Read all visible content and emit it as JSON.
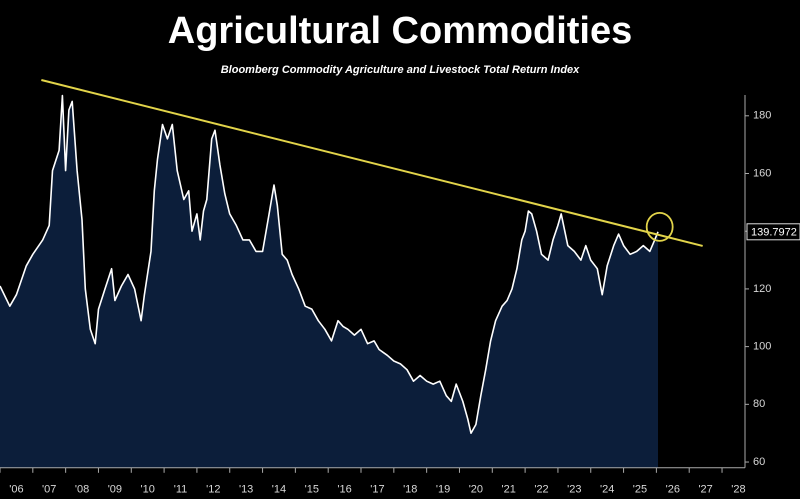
{
  "chart_data": {
    "type": "area",
    "title": "Agricultural Commodities",
    "subtitle": "Bloomberg Commodity Agriculture and Livestock Total Return Index",
    "x": [
      2006.0,
      2006.3,
      2006.5,
      2006.8,
      2007.0,
      2007.3,
      2007.5,
      2007.6,
      2007.8,
      2007.9,
      2008.0,
      2008.1,
      2008.2,
      2008.35,
      2008.5,
      2008.6,
      2008.75,
      2008.9,
      2009.0,
      2009.2,
      2009.4,
      2009.5,
      2009.7,
      2009.9,
      2010.1,
      2010.3,
      2010.4,
      2010.6,
      2010.7,
      2010.8,
      2010.95,
      2011.1,
      2011.25,
      2011.4,
      2011.6,
      2011.75,
      2011.85,
      2012.0,
      2012.1,
      2012.2,
      2012.3,
      2012.45,
      2012.55,
      2012.7,
      2012.85,
      2013.0,
      2013.2,
      2013.4,
      2013.6,
      2013.8,
      2014.0,
      2014.2,
      2014.35,
      2014.45,
      2014.6,
      2014.75,
      2014.9,
      2015.1,
      2015.3,
      2015.5,
      2015.7,
      2015.9,
      2016.1,
      2016.3,
      2016.45,
      2016.6,
      2016.8,
      2017.0,
      2017.2,
      2017.4,
      2017.55,
      2017.8,
      2018.0,
      2018.2,
      2018.4,
      2018.6,
      2018.8,
      2019.0,
      2019.2,
      2019.4,
      2019.6,
      2019.75,
      2019.9,
      2020.1,
      2020.25,
      2020.35,
      2020.5,
      2020.65,
      2020.8,
      2020.95,
      2021.1,
      2021.3,
      2021.45,
      2021.6,
      2021.75,
      2021.9,
      2022.0,
      2022.1,
      2022.2,
      2022.35,
      2022.5,
      2022.7,
      2022.85,
      2023.0,
      2023.1,
      2023.3,
      2023.5,
      2023.7,
      2023.85,
      2024.0,
      2024.2,
      2024.35,
      2024.5,
      2024.7,
      2024.85,
      2025.0,
      2025.2,
      2025.4,
      2025.6,
      2025.8,
      2025.95,
      2026.05
    ],
    "values": [
      121,
      114,
      118,
      128,
      132,
      137,
      142,
      161,
      168,
      187,
      161,
      182,
      185,
      161,
      144,
      120,
      106,
      101,
      113,
      120,
      127,
      116,
      121,
      125,
      120,
      109,
      118,
      133,
      154,
      165,
      177,
      172,
      177,
      161,
      151,
      154,
      140,
      146,
      137,
      147,
      151,
      172,
      175,
      163,
      153,
      146,
      142,
      137,
      137,
      133,
      133,
      146,
      156,
      149,
      132,
      130,
      125,
      120,
      114,
      113,
      109,
      106,
      102,
      109,
      107,
      106,
      104,
      106,
      101,
      102,
      99,
      97,
      95,
      94,
      92,
      88,
      90,
      88,
      87,
      88,
      83,
      81,
      87,
      81,
      75,
      70,
      73,
      83,
      92,
      102,
      109,
      114,
      116,
      120,
      127,
      137,
      140,
      147,
      146,
      140,
      132,
      130,
      137,
      142,
      146,
      135,
      133,
      130,
      135,
      130,
      127,
      118,
      128,
      135,
      139,
      135,
      132,
      133,
      135,
      133,
      137,
      139.7972
    ],
    "line_color": "#ffffff",
    "fill_color": "#0c1e3a",
    "trendline": {
      "x": [
        2007.26,
        2027.41
      ],
      "values": [
        192.4,
        134.9
      ],
      "color": "#e2d44a"
    },
    "highlight": {
      "x": 2026.1,
      "value": 141.5,
      "color": "#e2d44a"
    },
    "xlim": [
      2006.0,
      2028.7
    ],
    "ylim": [
      58,
      200
    ],
    "yticks": [
      60,
      80,
      100,
      120,
      140,
      160,
      180
    ],
    "xticks": [
      {
        "value": 2006,
        "label": "'06"
      },
      {
        "value": 2007,
        "label": "'07"
      },
      {
        "value": 2008,
        "label": "'08"
      },
      {
        "value": 2009,
        "label": "'09"
      },
      {
        "value": 2010,
        "label": "'10"
      },
      {
        "value": 2011,
        "label": "'11"
      },
      {
        "value": 2012,
        "label": "'12"
      },
      {
        "value": 2013,
        "label": "'13"
      },
      {
        "value": 2014,
        "label": "'14"
      },
      {
        "value": 2015,
        "label": "'15"
      },
      {
        "value": 2016,
        "label": "'16"
      },
      {
        "value": 2017,
        "label": "'17"
      },
      {
        "value": 2018,
        "label": "'18"
      },
      {
        "value": 2019,
        "label": "'19"
      },
      {
        "value": 2020,
        "label": "'20"
      },
      {
        "value": 2021,
        "label": "'21"
      },
      {
        "value": 2022,
        "label": "'22"
      },
      {
        "value": 2023,
        "label": "'23"
      },
      {
        "value": 2024,
        "label": "'24"
      },
      {
        "value": 2025,
        "label": "'25"
      },
      {
        "value": 2026,
        "label": "'26"
      },
      {
        "value": 2027,
        "label": "'27"
      },
      {
        "value": 2028,
        "label": "'28"
      }
    ]
  }
}
